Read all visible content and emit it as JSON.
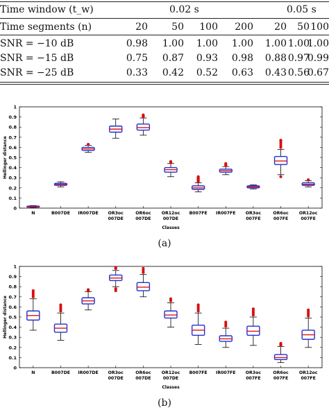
{
  "table": {
    "header_label": "Time window (t_w)",
    "window_1": "0.02 s",
    "window_2": "0.05 s",
    "segments_label": "Time segments (n)",
    "segments": [
      "20",
      "50",
      "100",
      "200",
      "20",
      "50",
      "100"
    ],
    "rows": [
      {
        "label": "SNR = −10 dB",
        "values": [
          "0.98",
          "1.00",
          "1.00",
          "1.00",
          "1.00",
          "1.00",
          "1.00"
        ]
      },
      {
        "label": "SNR = −15 dB",
        "values": [
          "0.75",
          "0.87",
          "0.93",
          "0.98",
          "0.88",
          "0.97",
          "0.99"
        ]
      },
      {
        "label": "SNR = −25 dB",
        "values": [
          "0.33",
          "0.42",
          "0.52",
          "0.63",
          "0.43",
          "0.56",
          "0.67"
        ]
      }
    ]
  },
  "chart_data": [
    {
      "type": "box",
      "panel_label": "(a)",
      "xlabel": "Classes",
      "ylabel": "Hellinger distance",
      "ylim": [
        0,
        1
      ],
      "yticks": [
        "0",
        "0.1",
        "0.2",
        "0.3",
        "0.4",
        "0.5",
        "0.6",
        "0.7",
        "0.8",
        "0.9",
        "1"
      ],
      "categories": [
        [
          "N"
        ],
        [
          "B007DE"
        ],
        [
          "IR007DE"
        ],
        [
          "OR3oc",
          "007DE"
        ],
        [
          "OR6oc",
          "007DE"
        ],
        [
          "OR12oc",
          "007DE"
        ],
        [
          "B007FE"
        ],
        [
          "IR007FE"
        ],
        [
          "OR3oc",
          "007FE"
        ],
        [
          "OR6oc",
          "007FE"
        ],
        [
          "OR12oc",
          "007FE"
        ]
      ],
      "boxes": [
        {
          "lw": 0.005,
          "q1": 0.01,
          "med": 0.015,
          "q3": 0.02,
          "uw": 0.025,
          "outliers": []
        },
        {
          "lw": 0.21,
          "q1": 0.225,
          "med": 0.235,
          "q3": 0.245,
          "uw": 0.26,
          "outliers": []
        },
        {
          "lw": 0.55,
          "q1": 0.57,
          "med": 0.585,
          "q3": 0.6,
          "uw": 0.62,
          "outliers": [
            0.63
          ]
        },
        {
          "lw": 0.69,
          "q1": 0.75,
          "med": 0.78,
          "q3": 0.81,
          "uw": 0.88,
          "outliers": []
        },
        {
          "lw": 0.72,
          "q1": 0.77,
          "med": 0.795,
          "q3": 0.83,
          "uw": 0.89,
          "outliers": [
            0.9,
            0.91,
            0.92
          ]
        },
        {
          "lw": 0.31,
          "q1": 0.355,
          "med": 0.38,
          "q3": 0.4,
          "uw": 0.44,
          "outliers": [
            0.45,
            0.46
          ]
        },
        {
          "lw": 0.16,
          "q1": 0.185,
          "med": 0.2,
          "q3": 0.22,
          "uw": 0.25,
          "outliers": [
            0.26,
            0.27,
            0.28,
            0.29,
            0.3,
            0.31
          ]
        },
        {
          "lw": 0.33,
          "q1": 0.355,
          "med": 0.37,
          "q3": 0.385,
          "uw": 0.41,
          "outliers": [
            0.42,
            0.43,
            0.44
          ]
        },
        {
          "lw": 0.19,
          "q1": 0.2,
          "med": 0.21,
          "q3": 0.22,
          "uw": 0.23,
          "outliers": []
        },
        {
          "lw": 0.33,
          "q1": 0.43,
          "med": 0.465,
          "q3": 0.51,
          "uw": 0.58,
          "outliers": [
            0.31,
            0.6,
            0.62,
            0.64,
            0.66,
            0.67
          ]
        },
        {
          "lw": 0.21,
          "q1": 0.225,
          "med": 0.235,
          "q3": 0.25,
          "uw": 0.27,
          "outliers": [
            0.28
          ]
        }
      ]
    },
    {
      "type": "box",
      "panel_label": "(b)",
      "xlabel": "Classes",
      "ylabel": "Hellinger distance",
      "ylim": [
        0,
        1
      ],
      "yticks": [
        "0",
        "0.1",
        "0.2",
        "0.3",
        "0.4",
        "0.5",
        "0.6",
        "0.7",
        "0.8",
        "0.9",
        "1"
      ],
      "categories": [
        [
          "N"
        ],
        [
          "B007DE"
        ],
        [
          "IR007DE"
        ],
        [
          "OR3oc",
          "007DE"
        ],
        [
          "OR6oc",
          "007DE"
        ],
        [
          "OR12oc",
          "007DE"
        ],
        [
          "B007FE"
        ],
        [
          "IR007FE"
        ],
        [
          "OR3oc",
          "007FE"
        ],
        [
          "OR6oc",
          "007FE"
        ],
        [
          "OR12oc",
          "007FE"
        ]
      ],
      "boxes": [
        {
          "lw": 0.37,
          "q1": 0.47,
          "med": 0.515,
          "q3": 0.56,
          "uw": 0.68,
          "outliers": [
            0.7,
            0.72,
            0.74,
            0.76
          ]
        },
        {
          "lw": 0.27,
          "q1": 0.35,
          "med": 0.39,
          "q3": 0.43,
          "uw": 0.54,
          "outliers": [
            0.56,
            0.58,
            0.6,
            0.62
          ]
        },
        {
          "lw": 0.57,
          "q1": 0.63,
          "med": 0.66,
          "q3": 0.69,
          "uw": 0.75,
          "outliers": [
            0.76,
            0.77
          ]
        },
        {
          "lw": 0.8,
          "q1": 0.86,
          "med": 0.885,
          "q3": 0.915,
          "uw": 0.96,
          "outliers": [
            0.76,
            0.78,
            0.98,
            0.99
          ]
        },
        {
          "lw": 0.7,
          "q1": 0.76,
          "med": 0.795,
          "q3": 0.84,
          "uw": 0.92,
          "outliers": [
            0.94,
            0.96,
            0.98
          ]
        },
        {
          "lw": 0.4,
          "q1": 0.49,
          "med": 0.52,
          "q3": 0.56,
          "uw": 0.64,
          "outliers": [
            0.66,
            0.68
          ]
        },
        {
          "lw": 0.23,
          "q1": 0.32,
          "med": 0.37,
          "q3": 0.42,
          "uw": 0.54,
          "outliers": [
            0.56,
            0.58,
            0.6,
            0.62
          ]
        },
        {
          "lw": 0.2,
          "q1": 0.26,
          "med": 0.285,
          "q3": 0.315,
          "uw": 0.39,
          "outliers": [
            0.41,
            0.43,
            0.45
          ]
        },
        {
          "lw": 0.22,
          "q1": 0.32,
          "med": 0.36,
          "q3": 0.41,
          "uw": 0.5,
          "outliers": [
            0.52,
            0.54,
            0.56,
            0.58
          ]
        },
        {
          "lw": 0.05,
          "q1": 0.08,
          "med": 0.1,
          "q3": 0.13,
          "uw": 0.21,
          "outliers": [
            0.22,
            0.23,
            0.24
          ]
        },
        {
          "lw": 0.2,
          "q1": 0.28,
          "med": 0.325,
          "q3": 0.37,
          "uw": 0.49,
          "outliers": [
            0.51,
            0.53,
            0.55,
            0.57
          ]
        }
      ]
    }
  ]
}
